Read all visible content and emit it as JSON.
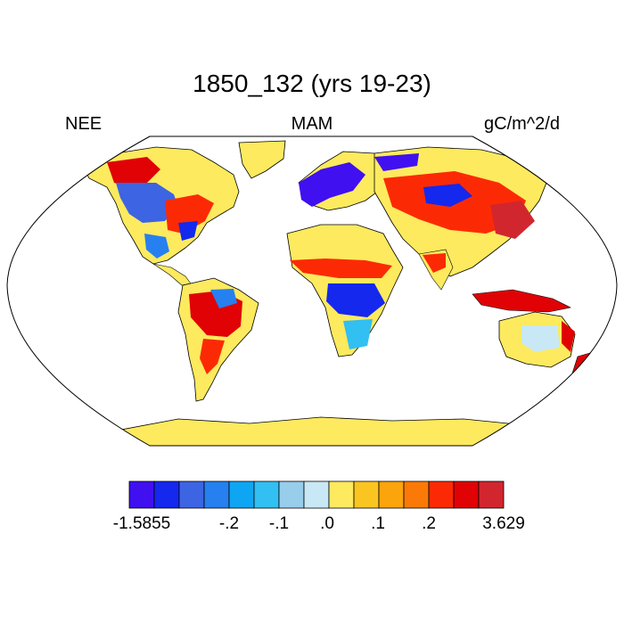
{
  "header": {
    "title": "1850_132 (yrs 19-23)",
    "left_label": "NEE",
    "center_label": "MAM",
    "right_label": "gC/m^2/d"
  },
  "colorbar": {
    "colors": [
      "#4010f0",
      "#1428ee",
      "#3d64e3",
      "#2680ef",
      "#0ea6f2",
      "#32bff2",
      "#98cdeb",
      "#c9e8f5",
      "#fdea5e",
      "#fbc521",
      "#fba40c",
      "#fb7a07",
      "#fc2a04",
      "#e00205",
      "#d2262f"
    ],
    "tick_labels": [
      "-1.5855",
      "-.2",
      "-.1",
      ".0",
      ".1",
      ".2",
      "3.629"
    ]
  },
  "colors": {
    "land_base": "#fdea5e",
    "ocean": "#ffffff",
    "coast": "#000000"
  }
}
